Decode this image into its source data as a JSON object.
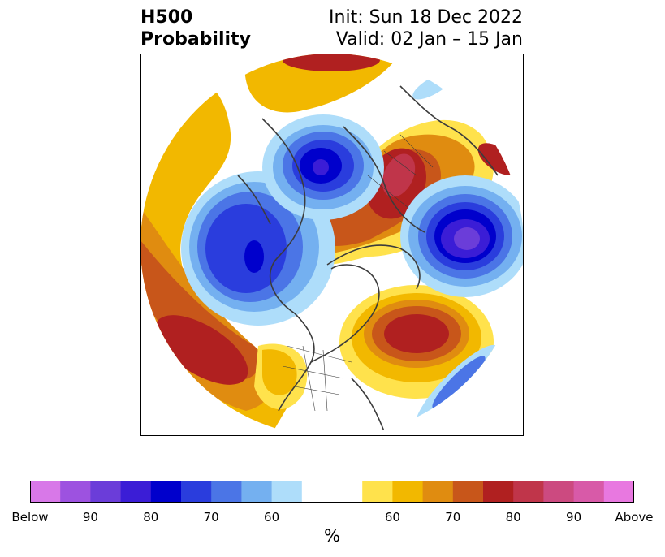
{
  "header": {
    "field": "H500",
    "product": "Probability",
    "init": "Init: Sun 18 Dec 2022",
    "valid": "Valid: 02 Jan – 15 Jan"
  },
  "colorbar": {
    "unit": "%",
    "tick_labels": [
      "Below",
      "90",
      "80",
      "70",
      "60",
      "60",
      "70",
      "80",
      "90",
      "Above"
    ],
    "colors": [
      "#d878e8",
      "#9d52e0",
      "#6b3dd9",
      "#3b1dd6",
      "#0000cc",
      "#2a3ddd",
      "#4b75e6",
      "#74b0f0",
      "#aeddfa",
      "#ffffff",
      "#ffe24c",
      "#f2b800",
      "#e08c10",
      "#c8561a",
      "#b02020",
      "#c0354a",
      "#cc4a80",
      "#d85aa8",
      "#e878e0"
    ]
  },
  "colors": {
    "land_outline": "#3c3c3c",
    "background": "#ffffff"
  }
}
